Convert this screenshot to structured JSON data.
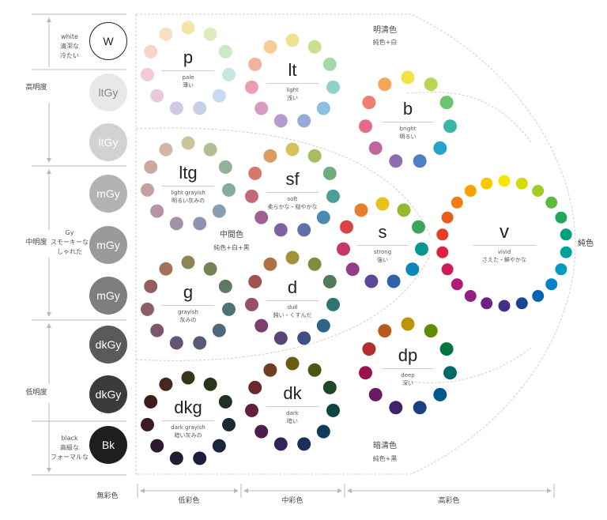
{
  "left_labels": {
    "white": "white",
    "white_desc1": "清潔な",
    "white_desc2": "冷たい",
    "high": "高明度",
    "gy": "Gy",
    "gy_desc1": "スモーキーな",
    "gy_desc2": "しゃれた",
    "mid": "中明度",
    "low": "低明度",
    "black": "black",
    "black_desc1": "高級な",
    "black_desc2": "フォーマルな"
  },
  "gray_circles": [
    {
      "label": "W",
      "fill": "#ffffff",
      "text": "#222222",
      "stroke": "#222222"
    },
    {
      "label": "ltGy",
      "fill": "#e8e8e8",
      "text": "#888888"
    },
    {
      "label": "ltGy",
      "fill": "#d2d2d2",
      "text": "#ffffff"
    },
    {
      "label": "mGy",
      "fill": "#b3b3b3",
      "text": "#ffffff"
    },
    {
      "label": "mGy",
      "fill": "#9a9a9a",
      "text": "#ffffff"
    },
    {
      "label": "mGy",
      "fill": "#7e7e7e",
      "text": "#ffffff"
    },
    {
      "label": "dkGy",
      "fill": "#5a5a5a",
      "text": "#ffffff"
    },
    {
      "label": "dkGy",
      "fill": "#3b3b3b",
      "text": "#ffffff"
    },
    {
      "label": "Bk",
      "fill": "#1e1e1e",
      "text": "#ffffff"
    }
  ],
  "region_labels": {
    "bright_group": "明清色",
    "bright_group_sub": "純色+白",
    "middle_group": "中間色",
    "middle_group_sub": "純色+白+黒",
    "dark_group": "暗清色",
    "dark_group_sub": "純色+黒",
    "pure": "純色"
  },
  "tones": [
    {
      "abbr": "p",
      "en": "pale",
      "ja": "薄い",
      "colors": [
        "#f3e4a8",
        "#ddecbe",
        "#cce8c9",
        "#c5e7e3",
        "#c6dcee",
        "#c7cfe8",
        "#d3c8e3",
        "#e6cbdc",
        "#f3cad4",
        "#f6d4c7",
        "#f7e0c3"
      ]
    },
    {
      "abbr": "lt",
      "en": "light",
      "ja": "浅い",
      "colors": [
        "#eee290",
        "#c8e090",
        "#a5d8a6",
        "#8fd2ca",
        "#8dbfe0",
        "#98a8d8",
        "#b59bd0",
        "#d79ac0",
        "#eb9fae",
        "#f1b3a0",
        "#f6cd97"
      ]
    },
    {
      "abbr": "b",
      "en": "bright",
      "ja": "明るい",
      "colors": [
        "#f2e446",
        "#b8d654",
        "#6cc470",
        "#37b7a4",
        "#24a3cc",
        "#4f80c3",
        "#8a6eb4",
        "#c0669f",
        "#e46c86",
        "#ee7f6e",
        "#f5a556"
      ]
    },
    {
      "abbr": "ltg",
      "en": "light grayish",
      "ja": "明るい灰みの",
      "colors": [
        "#ccc39a",
        "#b1bd92",
        "#93b09a",
        "#85aba6",
        "#86a0b2",
        "#8e93af",
        "#a092ab",
        "#b893a5",
        "#c69fa4",
        "#cda89d",
        "#d4b6a2"
      ]
    },
    {
      "abbr": "sf",
      "en": "soft",
      "ja": "柔らかな・穏やかな",
      "colors": [
        "#d6c25a",
        "#a7bd62",
        "#70ac7c",
        "#4c9f99",
        "#4c8ab2",
        "#5e72a9",
        "#7d64a0",
        "#a35f91",
        "#c0687c",
        "#d2796c",
        "#dc9a63"
      ]
    },
    {
      "abbr": "s",
      "en": "strong",
      "ja": "強い",
      "colors": [
        "#e5c21c",
        "#92bb2c",
        "#3ba55a",
        "#08978f",
        "#0c86b9",
        "#2d62a9",
        "#5b4897",
        "#933d86",
        "#c73669",
        "#dc4346",
        "#e87d2e"
      ]
    },
    {
      "abbr": "v",
      "en": "vivid",
      "ja": "さえた・鮮やかな",
      "colors": [
        "#f6e500",
        "#d2dc00",
        "#a2cd29",
        "#5bb93b",
        "#21a65a",
        "#00a183",
        "#00a19e",
        "#009cbf",
        "#0083c6",
        "#0064b2",
        "#16459b",
        "#432f8c",
        "#6b2386",
        "#8f1f82",
        "#b01c73",
        "#d01b5a",
        "#e1223b",
        "#e63d25",
        "#ec5c1a",
        "#f07d12",
        "#f6a100",
        "#fbc800"
      ]
    },
    {
      "abbr": "g",
      "en": "grayish",
      "ja": "灰みの",
      "colors": [
        "#8d8556",
        "#758255",
        "#5c7963",
        "#4e7372",
        "#4e677a",
        "#565b78",
        "#645571",
        "#7c576b",
        "#8c5f68",
        "#955d5b",
        "#a2725d"
      ]
    },
    {
      "abbr": "d",
      "en": "dull",
      "ja": "鈍い・くすんだ",
      "colors": [
        "#a3913a",
        "#7d8d3d",
        "#4e7c5a",
        "#2f7375",
        "#2f628b",
        "#3f4e84",
        "#5b4479",
        "#7c3f6e",
        "#985060",
        "#a35252",
        "#b06e44"
      ]
    },
    {
      "abbr": "dp",
      "en": "deep",
      "ja": "深い",
      "colors": [
        "#bd9500",
        "#618b00",
        "#00753d",
        "#006a68",
        "#00588c",
        "#1d3f81",
        "#40226f",
        "#6a1b64",
        "#99144d",
        "#b12d30",
        "#b55b1d"
      ]
    },
    {
      "abbr": "dkg",
      "en": "dark grayish",
      "ja": "暗い灰みの",
      "colors": [
        "#3a3518",
        "#2c3519",
        "#1e3123",
        "#172d2f",
        "#17283a",
        "#1b1d3b",
        "#241a33",
        "#2e1a2c",
        "#3b1a24",
        "#3d1c1c",
        "#43281b"
      ]
    },
    {
      "abbr": "dk",
      "en": "dark",
      "ja": "暗い",
      "colors": [
        "#6a5c11",
        "#4b5613",
        "#244723",
        "#0e4543",
        "#0e3c5a",
        "#1d2e5c",
        "#33245b",
        "#4d1e4c",
        "#62203c",
        "#6a2a2a",
        "#713e1d"
      ]
    }
  ],
  "bottom_labels": {
    "achromatic": "無彩色",
    "low_chroma": "低彩色",
    "mid_chroma": "中彩色",
    "high_chroma": "高彩色"
  }
}
